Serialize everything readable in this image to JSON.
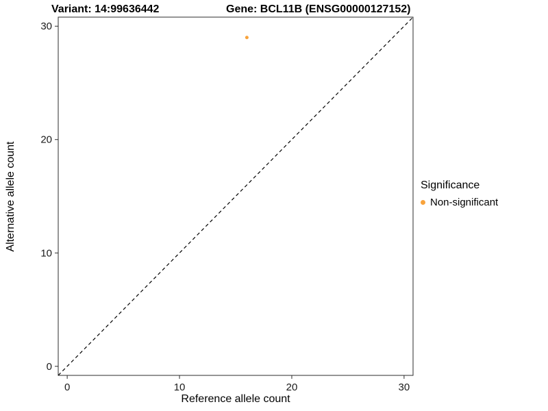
{
  "chart_data": {
    "type": "scatter",
    "title_left": "Variant: 14:99636442",
    "title_right": "Gene: BCL11B (ENSG00000127152)",
    "xlabel": "Reference allele count",
    "ylabel": "Alternative allele count",
    "xlim": [
      -0.8,
      30.8
    ],
    "ylim": [
      -0.8,
      30.8
    ],
    "x_ticks": [
      0,
      10,
      20,
      30
    ],
    "y_ticks": [
      0,
      10,
      20,
      30
    ],
    "grid": false,
    "panel_border_color": "#2b2b2b",
    "identity_line": {
      "style": "dashed",
      "slope": 1,
      "intercept": 0,
      "color": "#000000"
    },
    "points": [
      {
        "x": 16,
        "y": 29,
        "series": "Non-significant"
      }
    ],
    "point_radius": 2.5,
    "legend": {
      "title": "Significance",
      "position": "right",
      "entries": [
        {
          "label": "Non-significant",
          "color": "#F8A33C"
        }
      ]
    }
  }
}
